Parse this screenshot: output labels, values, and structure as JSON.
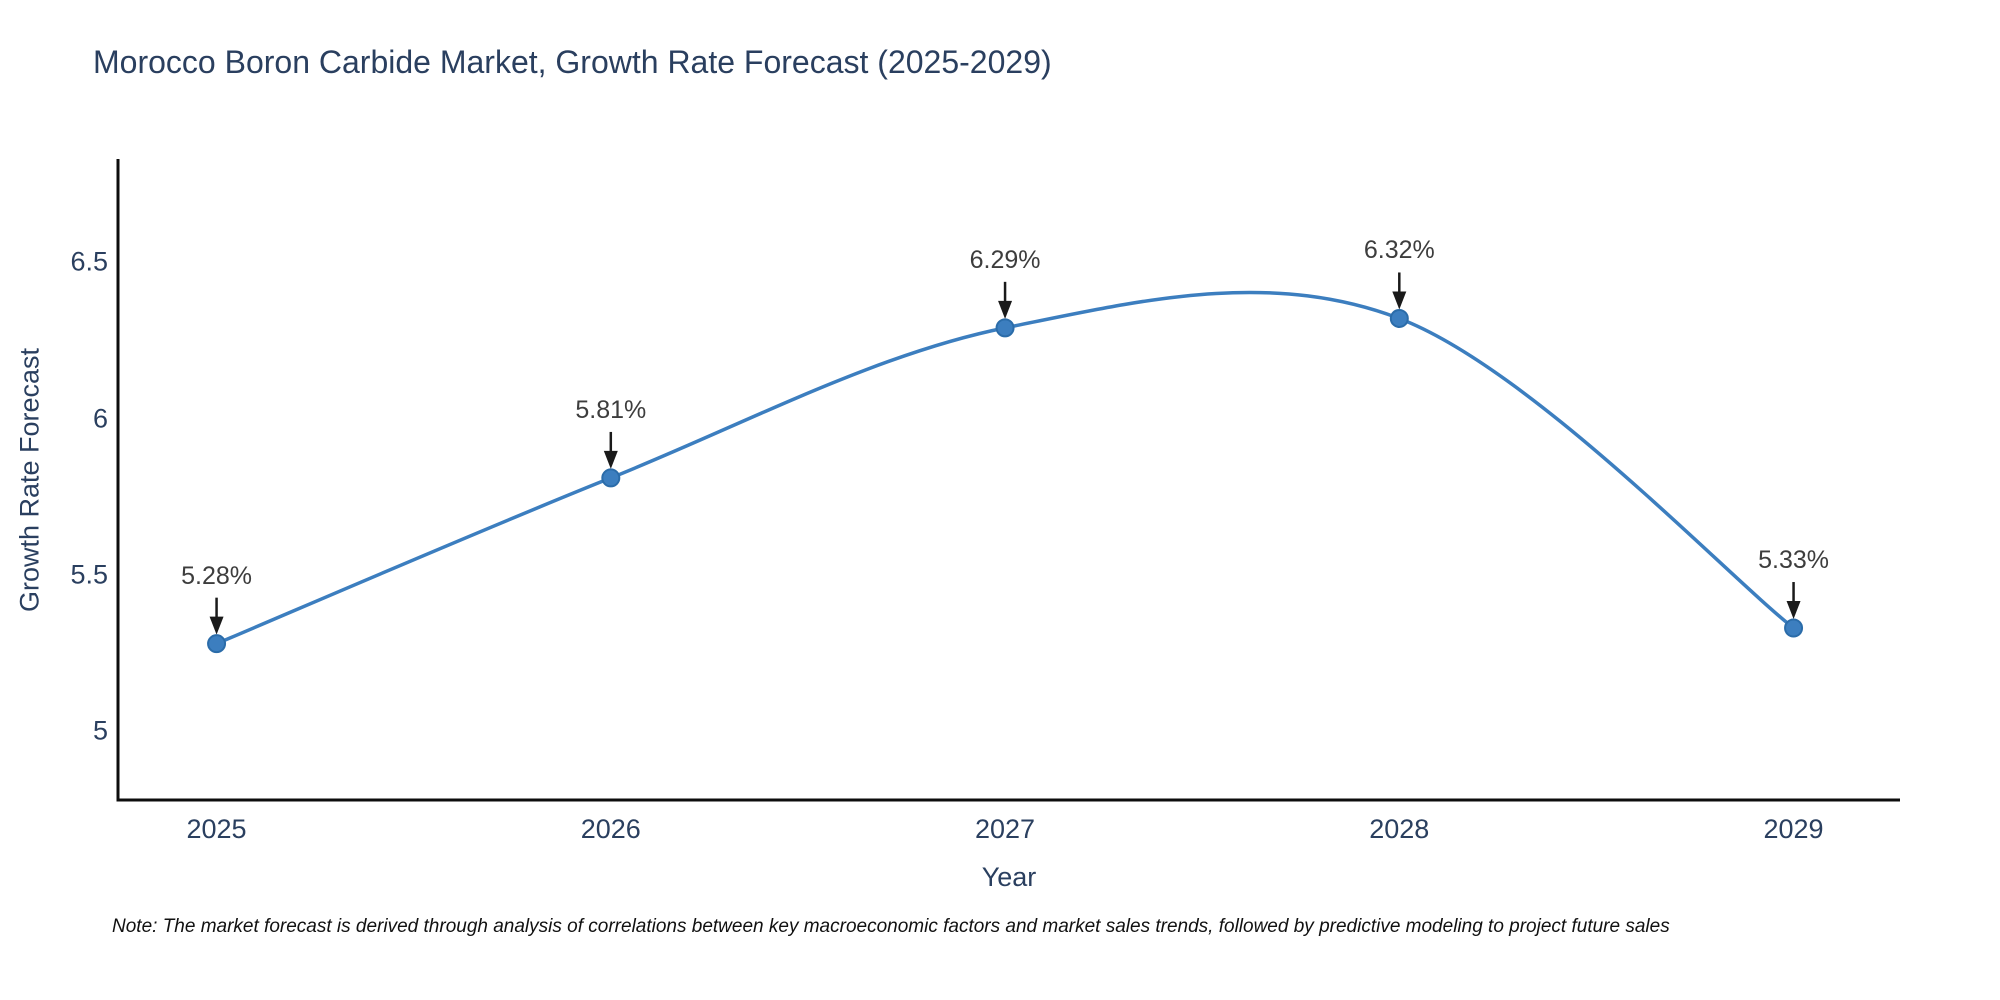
{
  "chart_data": {
    "type": "line",
    "title": "Morocco Boron Carbide Market, Growth Rate Forecast (2025-2029)",
    "xlabel": "Year",
    "ylabel": "Growth Rate Forecast",
    "x": [
      2025,
      2026,
      2027,
      2028,
      2029
    ],
    "categories": [
      "2025",
      "2026",
      "2027",
      "2028",
      "2029"
    ],
    "values": [
      5.28,
      5.81,
      6.29,
      6.32,
      5.33
    ],
    "point_labels": [
      "5.28%",
      "5.81%",
      "6.29%",
      "6.32%",
      "5.33%"
    ],
    "yticks": [
      5,
      5.5,
      6,
      6.5
    ],
    "yticklabels": [
      "5",
      "5.5",
      "6",
      "6.5"
    ],
    "xlim": [
      2024.75,
      2029.27
    ],
    "ylim": [
      4.78,
      6.83
    ],
    "line_shape": "spline",
    "grid": false,
    "legend": "none",
    "colors": {
      "line": "#3c7ebf",
      "marker_fill": "#3c7ebf",
      "marker_edge": "#2b6ca9",
      "axis": "#0d0d0d",
      "arrow": "#1a1a1a",
      "title_text": "#2a3f5f",
      "tick_text": "#2a3f5f",
      "annotation_text": "#3d3d3d"
    }
  },
  "note": {
    "text": "Note: The market forecast is derived through analysis of correlations between key macroeconomic factors and market sales trends, followed by predictive modeling to project future sales"
  }
}
